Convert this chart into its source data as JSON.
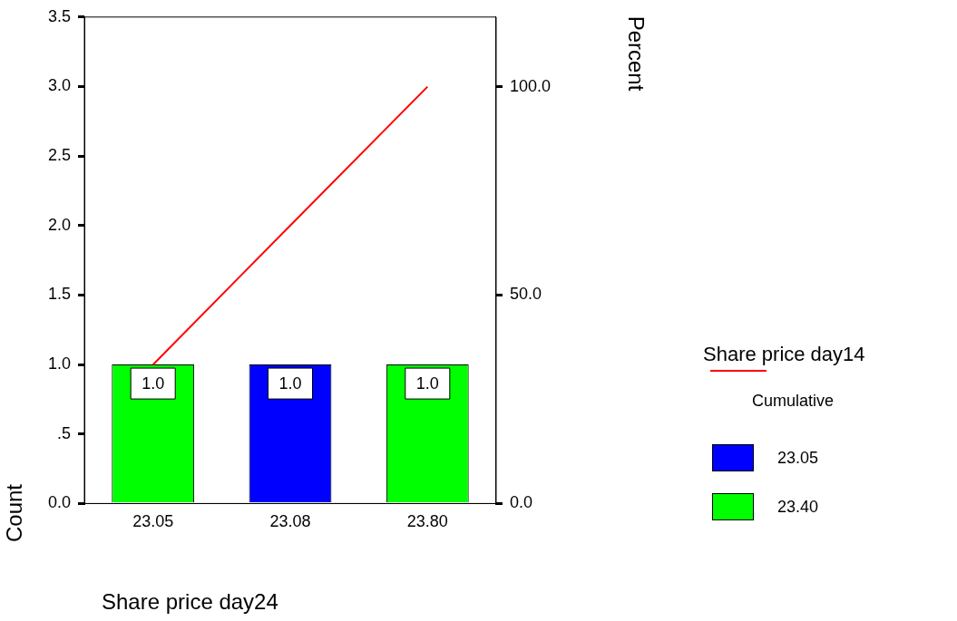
{
  "chart_data": {
    "type": "bar",
    "xlabel": "Share price day24",
    "ylabel": "Count",
    "y2label": "Percent",
    "legend_title": "Share price day14",
    "legend": "right",
    "grid": false,
    "stacked": true,
    "categories": [
      "23.05",
      "23.08",
      "23.80"
    ],
    "series": [
      {
        "name": "Cumulative",
        "type": "line",
        "axis": "y2",
        "color": "#ff0000",
        "marker": "none",
        "values": [
          33.3,
          66.7,
          100
        ]
      },
      {
        "name": "23.05",
        "color": "#0000ff",
        "values": [
          null,
          1,
          null
        ],
        "value_labels": [
          null,
          "1.0",
          null
        ]
      },
      {
        "name": "23.40",
        "color": "#00ff00",
        "values": [
          1,
          null,
          1
        ],
        "value_labels": [
          "1.0",
          null,
          "1.0"
        ]
      }
    ],
    "ylim": [
      0,
      3.5
    ],
    "yticks": [
      {
        "value": 0,
        "label": "0.0"
      },
      {
        "value": 0.5,
        "label": ".5"
      },
      {
        "value": 1,
        "label": "1.0"
      },
      {
        "value": 1.5,
        "label": "1.5"
      },
      {
        "value": 2,
        "label": "2.0"
      },
      {
        "value": 2.5,
        "label": "2.5"
      },
      {
        "value": 3,
        "label": "3.0"
      },
      {
        "value": 3.5,
        "label": "3.5"
      }
    ],
    "y2lim": [
      0,
      116.7
    ],
    "y2ticks": [
      {
        "value": 0,
        "label": "0.0"
      },
      {
        "value": 50,
        "label": "50.0"
      },
      {
        "value": 100,
        "label": "100.0"
      }
    ]
  }
}
